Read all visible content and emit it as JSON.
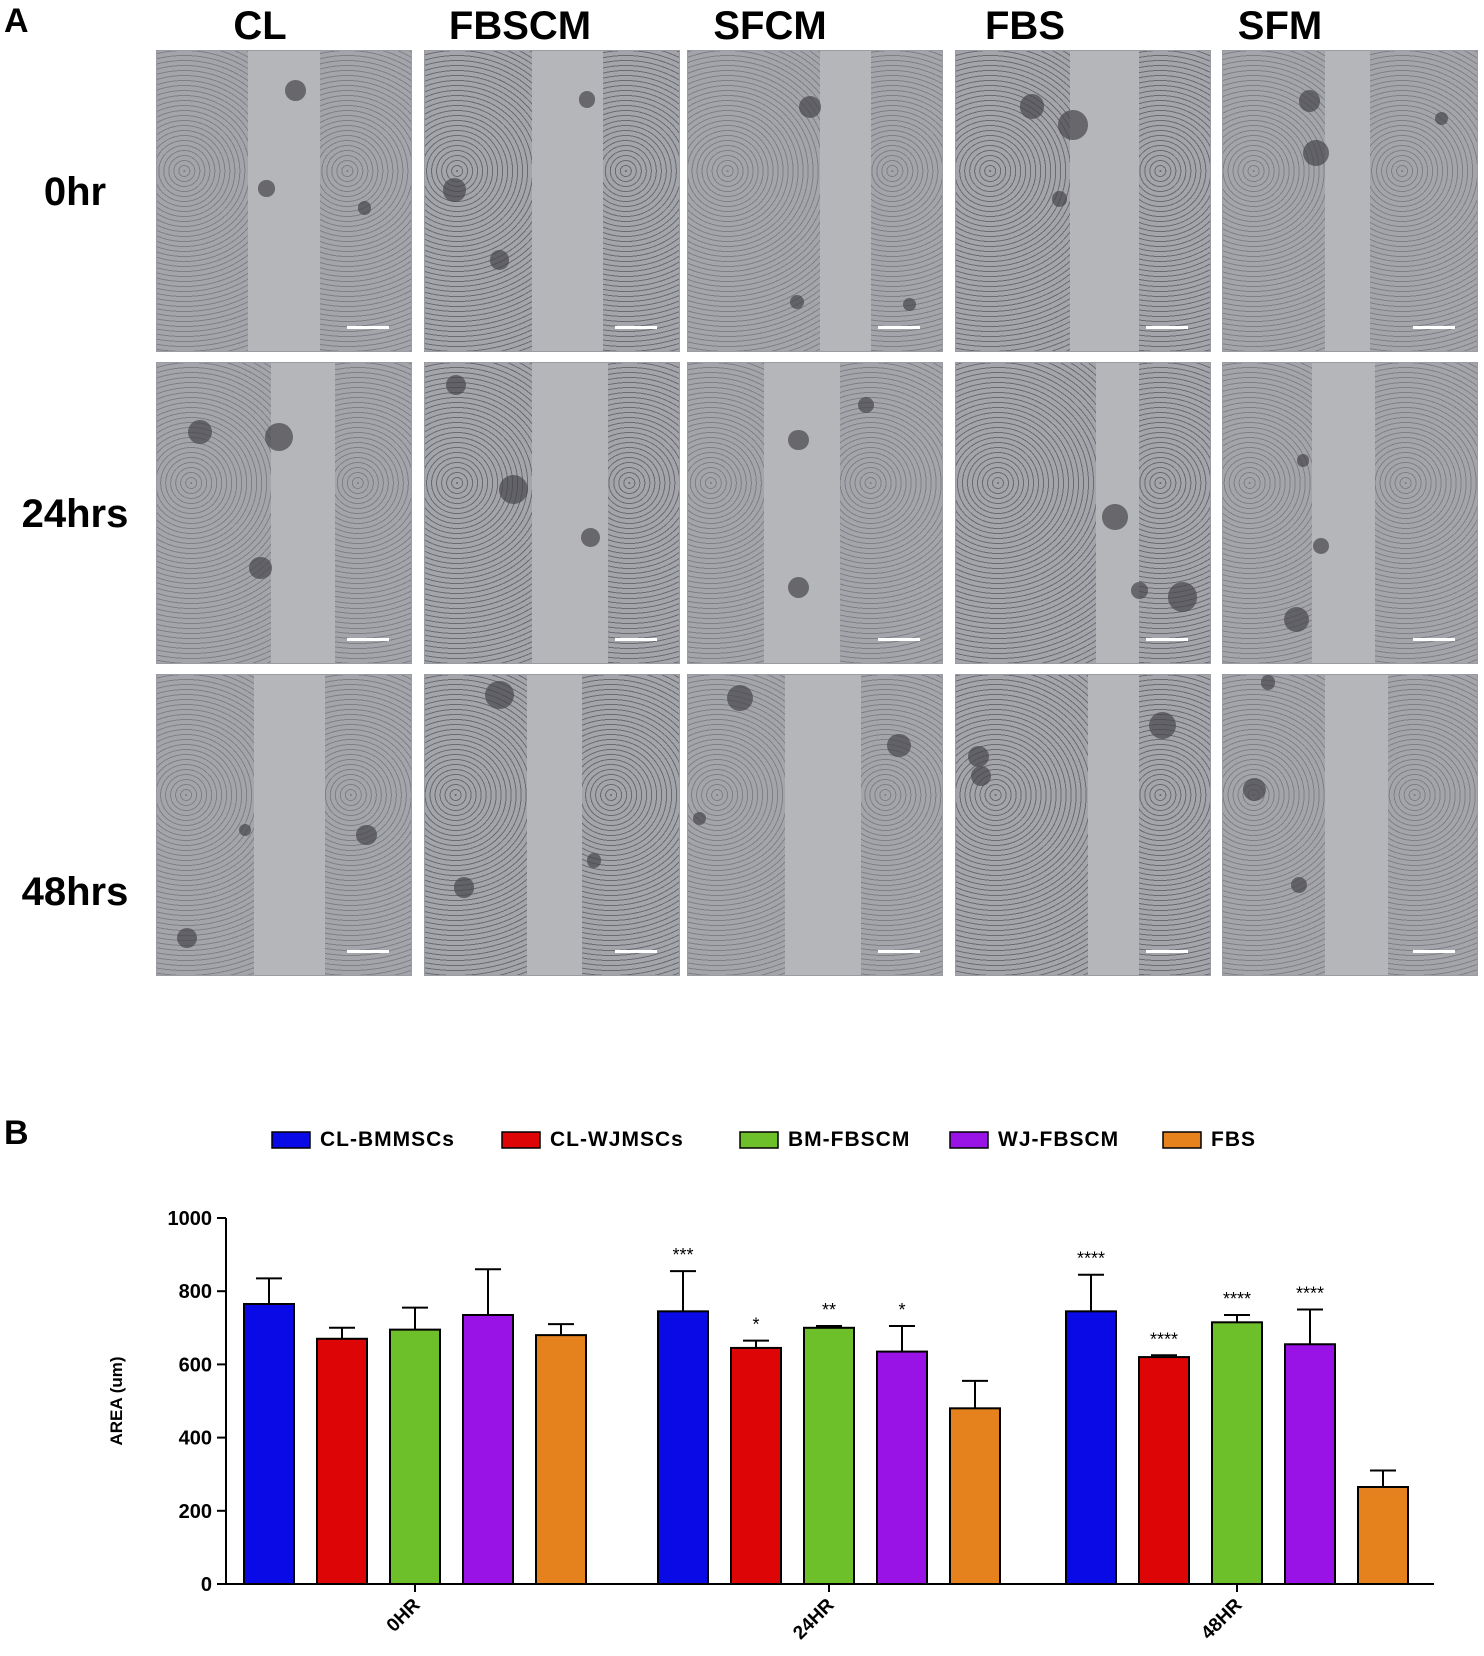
{
  "panel_a": {
    "letter": "A",
    "columns": [
      "CL",
      "FBSCM",
      "SFCM",
      "FBS",
      "SFM"
    ],
    "rows": [
      "0hr",
      "24hrs",
      "48hrs"
    ]
  },
  "panel_b": {
    "letter": "B"
  },
  "chart_data": {
    "type": "bar",
    "categories": [
      "0HR",
      "24HR",
      "48HR"
    ],
    "ylabel": "AREA (um)",
    "xlabel": "",
    "ylim": [
      0,
      1000
    ],
    "yticks": [
      0,
      200,
      400,
      600,
      800,
      1000
    ],
    "legend_position": "top",
    "series": [
      {
        "name": "CL-BMMSCs",
        "color": "#0a0ae6",
        "values": [
          765,
          745,
          745
        ],
        "errors": [
          70,
          110,
          100
        ],
        "significance": [
          "",
          "***",
          "****"
        ]
      },
      {
        "name": "CL-WJMSCs",
        "color": "#dd0505",
        "values": [
          670,
          645,
          620
        ],
        "errors": [
          30,
          20,
          5
        ],
        "significance": [
          "",
          "*",
          "****"
        ]
      },
      {
        "name": "BM-FBSCM",
        "color": "#6ec02a",
        "values": [
          695,
          700,
          715
        ],
        "errors": [
          60,
          5,
          20
        ],
        "significance": [
          "",
          "**",
          "****"
        ]
      },
      {
        "name": "WJ-FBSCM",
        "color": "#9a13e6",
        "values": [
          735,
          635,
          655
        ],
        "errors": [
          125,
          70,
          95
        ],
        "significance": [
          "",
          "*",
          "****"
        ]
      },
      {
        "name": "FBS",
        "color": "#e6821e",
        "values": [
          680,
          480,
          265
        ],
        "errors": [
          30,
          75,
          45
        ],
        "significance": [
          "",
          "",
          ""
        ]
      }
    ]
  }
}
